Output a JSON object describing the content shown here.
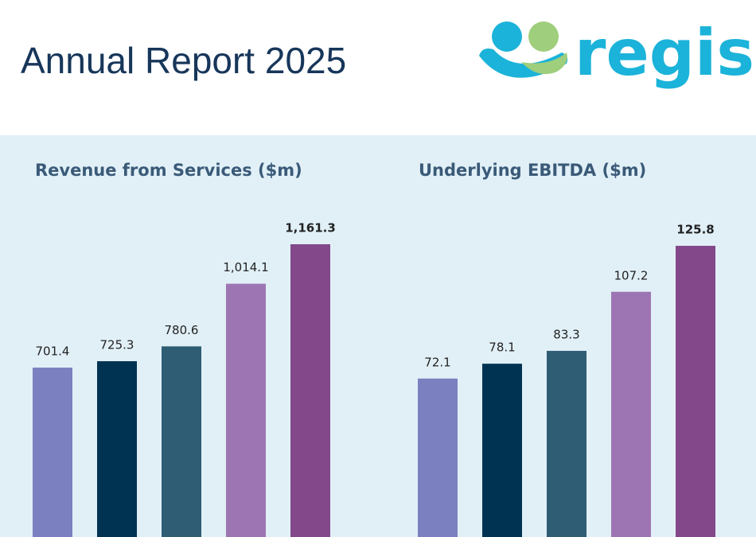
{
  "header": {
    "title": "Annual Report 2025",
    "logo": "regis"
  },
  "chart_data": [
    {
      "type": "bar",
      "title": "Revenue from Services ($m)",
      "values": [
        701.4,
        725.3,
        780.6,
        1014.1,
        1161.3
      ],
      "value_labels": [
        "701.4",
        "725.3",
        "780.6",
        "1,014.1",
        "1,161.3"
      ],
      "colors": [
        "#7b80c0",
        "#003352",
        "#2f5d74",
        "#9e75b3",
        "#824889"
      ],
      "ylim": [
        70,
        1360
      ]
    },
    {
      "type": "bar",
      "title": "Underlying EBITDA ($m)",
      "values": [
        72.1,
        78.1,
        83.3,
        107.2,
        125.8
      ],
      "value_labels": [
        "72.1",
        "78.1",
        "83.3",
        "107.2",
        "125.8"
      ],
      "colors": [
        "#7b80c0",
        "#003352",
        "#2f5d74",
        "#9e75b3",
        "#824889"
      ],
      "ylim": [
        8,
        148
      ]
    }
  ]
}
